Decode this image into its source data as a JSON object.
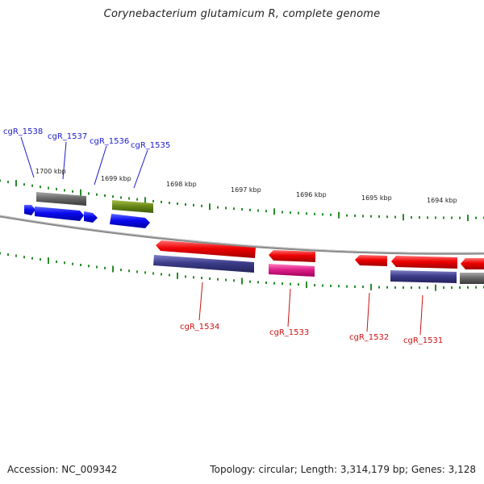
{
  "title": "Corynebacterium glutamicum R, complete genome",
  "footer": {
    "accession": "Accession: NC_009342",
    "topology": "Topology: circular; Length: 3,314,179 bp; Genes: 3,128"
  },
  "scale_labels": [
    "1700 kbp",
    "1699 kbp",
    "1698 kbp",
    "1697 kbp",
    "1696 kbp",
    "1695 kbp",
    "1694 kbp"
  ],
  "gene_labels": {
    "forward": [
      "cgR_1538",
      "cgR_1537",
      "cgR_1536",
      "cgR_1535"
    ],
    "reverse": [
      "cgR_1534",
      "cgR_1533",
      "cgR_1532",
      "cgR_1531"
    ]
  },
  "colors": {
    "forward_label": "#1a1acc",
    "reverse_label": "#cc1111",
    "tick": "#2a8a2a",
    "backbone": "#888888",
    "blue_gene": "#0a0af0",
    "red_gene": "#ee0000",
    "gray_gene": "#6a6a6a",
    "olive_gene": "#6a8a1a",
    "purple_gene": "#3c3c8a",
    "magenta_gene": "#e0208a"
  }
}
